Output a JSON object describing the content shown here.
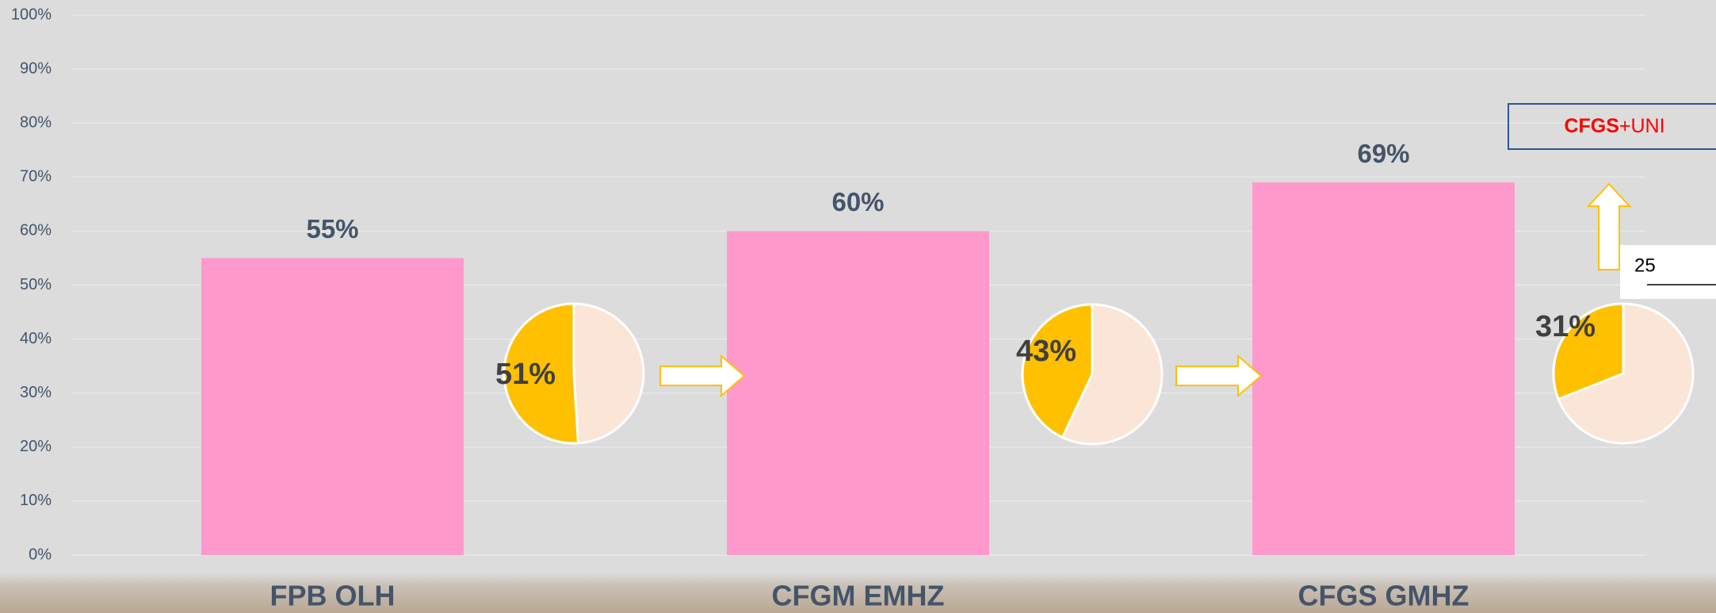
{
  "chart_data": [
    {
      "type": "bar",
      "categories": [
        "FPB OLH",
        "CFGM EMHZ",
        "CFGS GMHZ"
      ],
      "values": [
        55,
        60,
        69
      ],
      "value_labels": [
        "55%",
        "60%",
        "69%"
      ],
      "color": "#ff99cc",
      "ylim": [
        0,
        100
      ],
      "yticks": [
        {
          "value": 0,
          "label": "0%"
        },
        {
          "value": 10,
          "label": "10%"
        },
        {
          "value": 20,
          "label": "20%"
        },
        {
          "value": 30,
          "label": "30%"
        },
        {
          "value": 40,
          "label": "40%"
        },
        {
          "value": 50,
          "label": "50%"
        },
        {
          "value": 60,
          "label": "60%"
        },
        {
          "value": 70,
          "label": "70%"
        },
        {
          "value": 80,
          "label": "80%"
        },
        {
          "value": 90,
          "label": "90%"
        },
        {
          "value": 100,
          "label": "100%"
        }
      ],
      "grid": true
    },
    {
      "type": "pie",
      "values": [
        51,
        43,
        31
      ],
      "value_labels": [
        "51%",
        "43%",
        "31%"
      ],
      "color": "#ffc000",
      "rest_color": "#fbe5d6"
    }
  ],
  "annotations": {
    "box_bold": "CFGS",
    "box_rest": "+UNI",
    "input_value": "25"
  }
}
